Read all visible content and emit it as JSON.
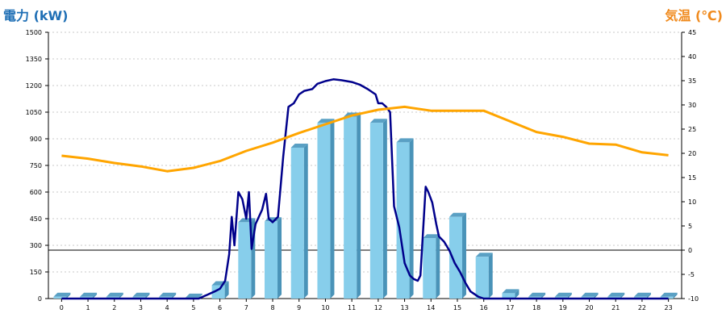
{
  "chart_data": {
    "type": "bar",
    "left_axis_title": "電力 (kW)",
    "right_axis_title": "気温 (℃)",
    "categories": [
      "0",
      "1",
      "2",
      "3",
      "4",
      "5",
      "6",
      "7",
      "8",
      "9",
      "10",
      "11",
      "12",
      "13",
      "14",
      "15",
      "16",
      "17",
      "18",
      "19",
      "20",
      "21",
      "22",
      "23"
    ],
    "y_left": {
      "min": 0,
      "max": 1500,
      "ticks": [
        0,
        150,
        300,
        450,
        600,
        750,
        900,
        1050,
        1200,
        1350,
        1500
      ]
    },
    "y_right": {
      "min": -10,
      "max": 45,
      "ticks": [
        -10,
        -5,
        0,
        5,
        10,
        15,
        20,
        25,
        30,
        35,
        40,
        45
      ]
    },
    "grid": true,
    "series": [
      {
        "kind": "bar",
        "axis": "left",
        "color": "#87ceeb",
        "values": [
          10,
          10,
          10,
          10,
          10,
          5,
          75,
          430,
          435,
          850,
          990,
          1025,
          990,
          880,
          340,
          460,
          235,
          30,
          10,
          10,
          10,
          10,
          10,
          10
        ]
      },
      {
        "kind": "line",
        "axis": "left",
        "color": "#00008b",
        "points": [
          [
            0,
            0
          ],
          [
            1,
            0
          ],
          [
            2,
            0
          ],
          [
            3,
            0
          ],
          [
            4,
            0
          ],
          [
            5,
            0
          ],
          [
            5.2,
            0
          ],
          [
            5.5,
            20
          ],
          [
            5.8,
            40
          ],
          [
            6,
            55
          ],
          [
            6.2,
            100
          ],
          [
            6.35,
            250
          ],
          [
            6.45,
            460
          ],
          [
            6.55,
            300
          ],
          [
            6.7,
            600
          ],
          [
            6.85,
            560
          ],
          [
            7,
            450
          ],
          [
            7.1,
            600
          ],
          [
            7.2,
            280
          ],
          [
            7.35,
            420
          ],
          [
            7.6,
            500
          ],
          [
            7.75,
            590
          ],
          [
            7.85,
            450
          ],
          [
            8,
            430
          ],
          [
            8.2,
            460
          ],
          [
            8.4,
            800
          ],
          [
            8.6,
            1080
          ],
          [
            8.8,
            1100
          ],
          [
            9,
            1150
          ],
          [
            9.2,
            1170
          ],
          [
            9.5,
            1180
          ],
          [
            9.7,
            1210
          ],
          [
            10,
            1225
          ],
          [
            10.3,
            1235
          ],
          [
            10.6,
            1230
          ],
          [
            11,
            1220
          ],
          [
            11.3,
            1205
          ],
          [
            11.6,
            1180
          ],
          [
            11.9,
            1150
          ],
          [
            12,
            1100
          ],
          [
            12.15,
            1100
          ],
          [
            12.3,
            1080
          ],
          [
            12.45,
            1050
          ],
          [
            12.6,
            520
          ],
          [
            12.8,
            400
          ],
          [
            13,
            200
          ],
          [
            13.2,
            130
          ],
          [
            13.35,
            110
          ],
          [
            13.5,
            100
          ],
          [
            13.6,
            130
          ],
          [
            13.8,
            630
          ],
          [
            13.9,
            600
          ],
          [
            14.05,
            540
          ],
          [
            14.2,
            420
          ],
          [
            14.3,
            350
          ],
          [
            14.5,
            320
          ],
          [
            14.7,
            270
          ],
          [
            14.9,
            200
          ],
          [
            15.1,
            150
          ],
          [
            15.3,
            90
          ],
          [
            15.5,
            40
          ],
          [
            15.8,
            10
          ],
          [
            16,
            0
          ],
          [
            17,
            0
          ],
          [
            18,
            0
          ],
          [
            19,
            0
          ],
          [
            20,
            0
          ],
          [
            21,
            0
          ],
          [
            22,
            0
          ],
          [
            23,
            0
          ]
        ]
      },
      {
        "kind": "line",
        "axis": "right",
        "color": "#ffa500",
        "values": [
          19.5,
          18.9,
          18.0,
          17.3,
          16.3,
          17.0,
          18.4,
          20.5,
          22.2,
          24.2,
          26.0,
          27.8,
          29.0,
          29.6,
          28.8,
          28.8,
          28.8,
          26.6,
          24.4,
          23.4,
          22.0,
          21.8,
          20.2,
          19.6
        ]
      }
    ]
  }
}
